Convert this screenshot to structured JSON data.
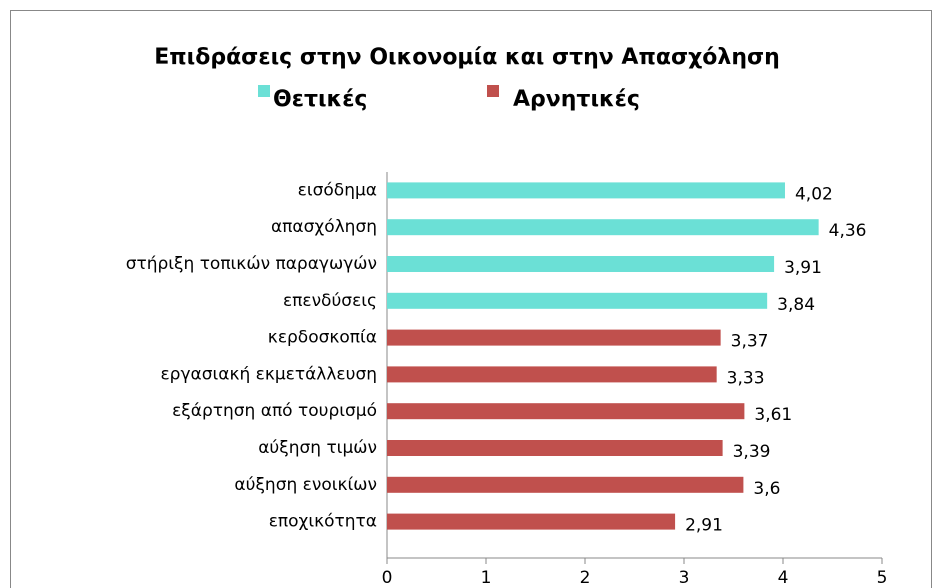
{
  "chart_data": {
    "type": "hbar",
    "title": "Επιδράσεις στην Οικονομία και στην Απασχόληση",
    "categories": [
      "εισόδημα",
      "απασχόληση",
      "στήριξη τοπικών παραγωγών",
      "επενδύσεις",
      "κερδοσκοπία",
      "εργασιακή εκμετάλλευση",
      "εξάρτηση από τουρισμό",
      "αύξηση τιμών",
      "αύξηση ενοικίων",
      "εποχικότητα"
    ],
    "series": [
      {
        "name": "Θετικές",
        "color": "#6be0d6",
        "values": [
          4.02,
          4.36,
          3.91,
          3.84,
          null,
          null,
          null,
          null,
          null,
          null
        ],
        "value_labels": [
          "4,02",
          "4,36",
          "3,91",
          "3,84",
          null,
          null,
          null,
          null,
          null,
          null
        ]
      },
      {
        "name": "Αρνητικές",
        "color": "#c0504d",
        "values": [
          null,
          null,
          null,
          null,
          3.37,
          3.33,
          3.61,
          3.39,
          3.6,
          2.91
        ],
        "value_labels": [
          null,
          null,
          null,
          null,
          "3,37",
          "3,33",
          "3,61",
          "3,39",
          "3,6",
          "2,91"
        ]
      }
    ],
    "xlim": [
      0,
      5
    ],
    "xticks": [
      0,
      1,
      2,
      3,
      4,
      5
    ]
  }
}
